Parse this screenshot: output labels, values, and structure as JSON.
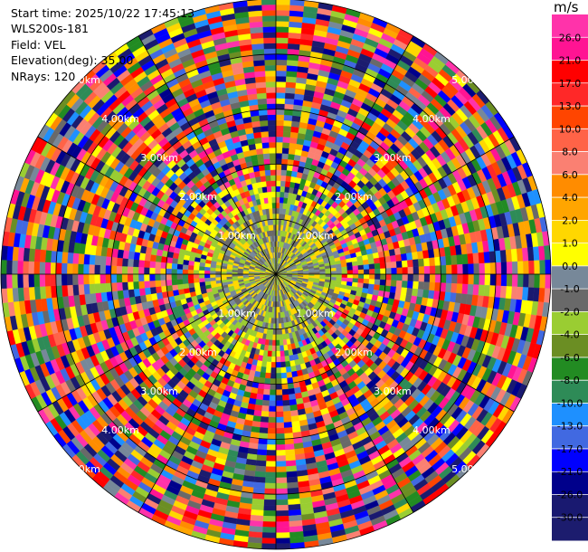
{
  "info": {
    "start_time": "Start time: 2025/10/22 17:45:13",
    "station": "WLS200s-181",
    "field": "Field: VEL",
    "elevation": "Elevation(deg): 35.00",
    "nrays": "NRays: 120"
  },
  "colorbar": {
    "unit": "m/s",
    "ticks": [
      "26.0",
      "21.0",
      "17.0",
      "13.0",
      "10.0",
      "8.0",
      "6.0",
      "4.0",
      "2.0",
      "1.0",
      "0.0",
      "-1.0",
      "-2.0",
      "-4.0",
      "-6.0",
      "-8.0",
      "-10.0",
      "-13.0",
      "-17.0",
      "-21.0",
      "-26.0",
      "-30.0"
    ],
    "colors": [
      "#ff33aa",
      "#ff1493",
      "#ff0000",
      "#ff2828",
      "#ff4500",
      "#ff6347",
      "#fa8072",
      "#ff8c00",
      "#ffa500",
      "#ffd700",
      "#ffff00",
      "#778899",
      "#696969",
      "#9acd32",
      "#6b8e23",
      "#228b22",
      "#2e8b57",
      "#1e90ff",
      "#4169e1",
      "#0000ff",
      "#00008b",
      "#191970",
      "#1c1c6e"
    ]
  },
  "chart_data": {
    "type": "polar-ppi",
    "field": "VEL",
    "unit": "m/s",
    "elevation_deg": 35.0,
    "n_rays": 120,
    "range_rings_km": [
      1.0,
      2.0,
      3.0,
      4.0,
      5.0
    ],
    "range_labels": [
      "1.00km",
      "2.00km",
      "3.00km",
      "4.00km",
      "5.00km"
    ],
    "max_range_km": 5.0,
    "near_field_km": 1.2,
    "near_field_classes": [
      "0.0",
      "-1.0",
      "1.0",
      "-2.0"
    ]
  }
}
